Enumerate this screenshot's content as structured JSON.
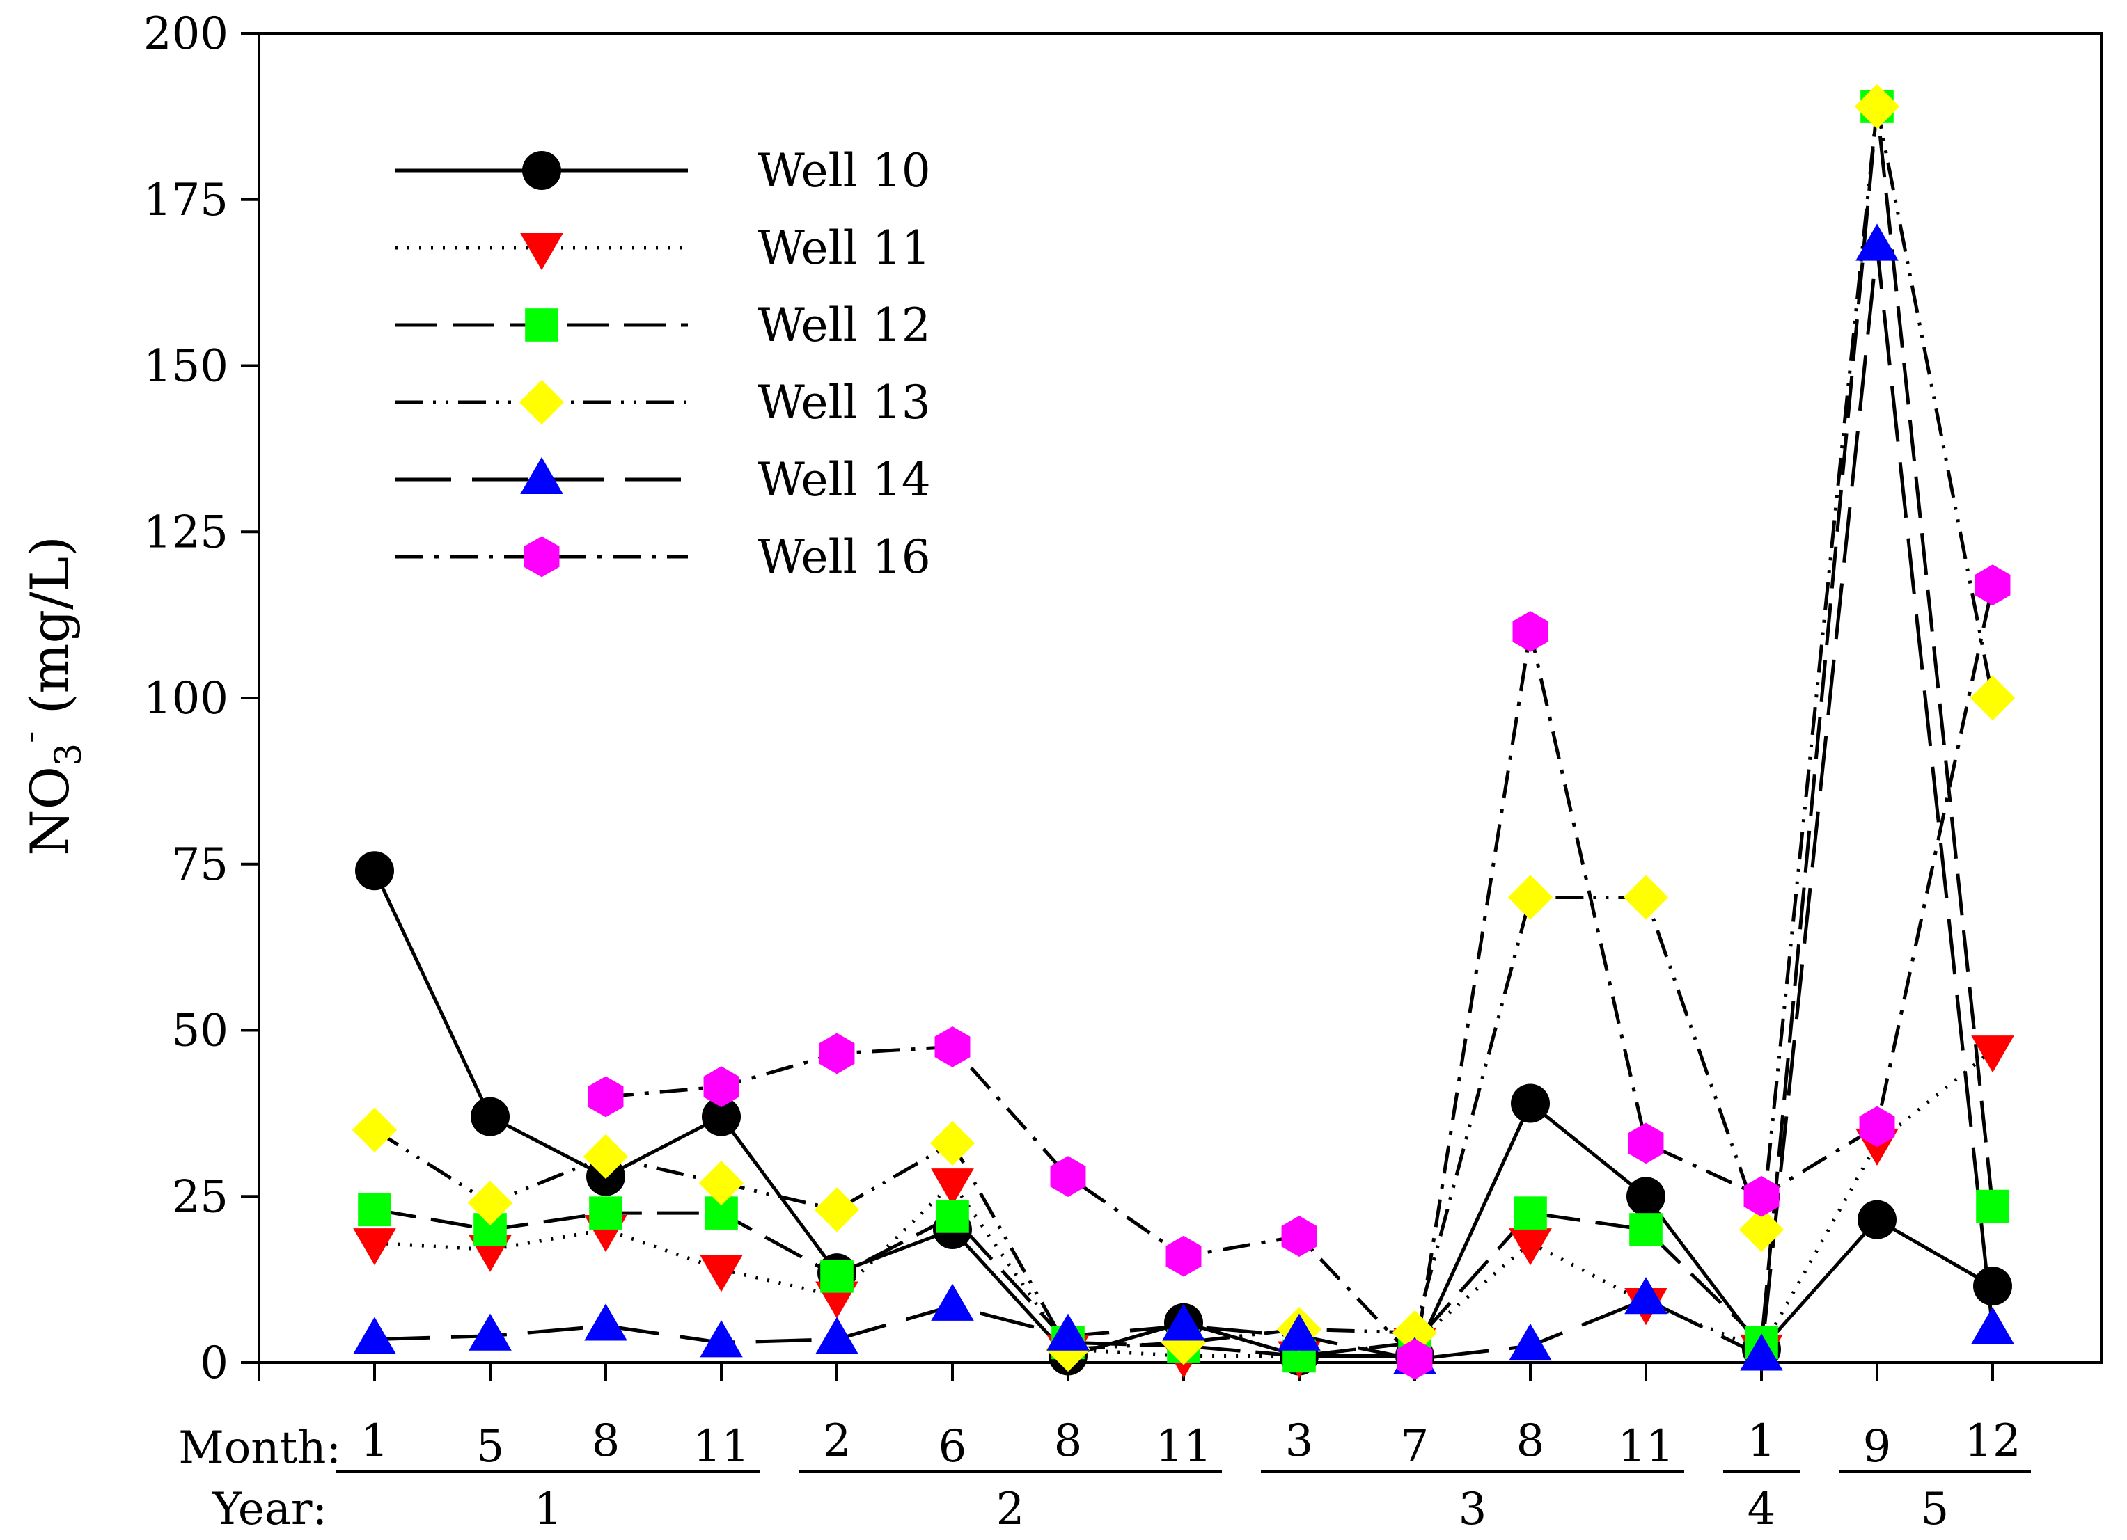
{
  "chart_data": {
    "type": "line",
    "title": "",
    "ylabel": "NO3- (mg/L)",
    "ylabel_parts": {
      "main": "NO",
      "sub": "3",
      "sup": "-",
      "unit": " (mg/L)"
    },
    "xlabel": "",
    "ylim": [
      0,
      200
    ],
    "yticks": [
      0,
      25,
      50,
      75,
      100,
      125,
      150,
      175,
      200
    ],
    "ytick_labels": [
      "0",
      "25",
      "50",
      "75",
      "100",
      "125",
      "150",
      "175",
      "200"
    ],
    "x_row_labels": {
      "month": "Month:",
      "year": "Year:"
    },
    "months": [
      "1",
      "5",
      "8",
      "11",
      "2",
      "6",
      "8",
      "11",
      "3",
      "7",
      "8",
      "11",
      "1",
      "9",
      "12"
    ],
    "years": [
      {
        "label": "1",
        "start": 0,
        "end": 3
      },
      {
        "label": "2",
        "start": 4,
        "end": 7
      },
      {
        "label": "3",
        "start": 8,
        "end": 11
      },
      {
        "label": "4",
        "start": 12,
        "end": 12
      },
      {
        "label": "5",
        "start": 13,
        "end": 14
      }
    ],
    "legend_position": "top-left",
    "series": [
      {
        "name": "Well 10",
        "marker": "circle",
        "color": "#000000",
        "dash": "solid",
        "values": [
          74,
          37,
          28,
          37,
          13.5,
          20,
          1,
          6,
          1,
          1,
          39,
          25,
          2,
          21.5,
          11.5
        ]
      },
      {
        "name": "Well 11",
        "marker": "triangle-down",
        "color": "#ff0000",
        "dash": "dotted",
        "values": [
          18,
          17,
          20,
          14,
          10,
          27,
          2,
          1,
          1,
          3,
          18,
          9,
          2,
          33,
          47
        ]
      },
      {
        "name": "Well 12",
        "marker": "square",
        "color": "#00ff00",
        "dash": "long-dash",
        "values": [
          23,
          20,
          22.5,
          22.5,
          13,
          22,
          3,
          2.5,
          1,
          3,
          22.5,
          20,
          3,
          189,
          23.5
        ]
      },
      {
        "name": "Well 13",
        "marker": "diamond",
        "color": "#ffff00",
        "dash": "dash-dot-dot",
        "values": [
          35,
          24,
          31,
          27,
          23,
          33,
          2,
          3,
          5,
          4.5,
          70,
          70,
          20,
          189,
          100
        ]
      },
      {
        "name": "Well 14",
        "marker": "triangle-up",
        "color": "#0000ff",
        "dash": "long-long-dash",
        "values": [
          3.5,
          4,
          5.5,
          3,
          3.5,
          8.5,
          4,
          5.5,
          4,
          0.5,
          2.5,
          9.5,
          1,
          168,
          5
        ]
      },
      {
        "name": "Well 16",
        "marker": "hexagon",
        "color": "#ff00ff",
        "dash": "dash-dot",
        "values": [
          null,
          null,
          40,
          41.5,
          46.5,
          47.5,
          28,
          16,
          19,
          0.5,
          110,
          33,
          25,
          35.5,
          117
        ]
      }
    ]
  }
}
